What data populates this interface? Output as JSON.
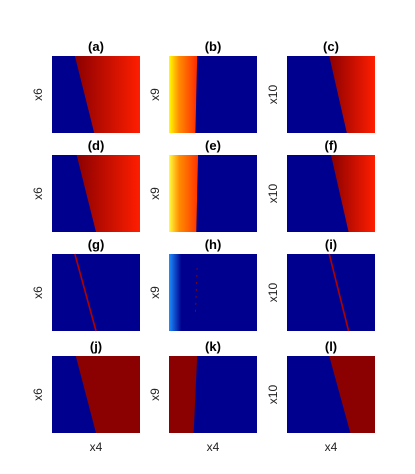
{
  "figure": {
    "colors": {
      "background": "#00008f",
      "red": "#ff1e00",
      "dark_red": "#8b0000",
      "yellow": "#ffff00",
      "light_blue": "#1e90ff"
    }
  },
  "chart_data": [
    {
      "type": "heatmap",
      "title": "(a)",
      "xlabel": "",
      "ylabel": "x6",
      "pattern": "boundary-gradient",
      "boundary_x": [
        0.26,
        0.48
      ],
      "colors": [
        "#ff1e00",
        "#8b0000"
      ]
    },
    {
      "type": "heatmap",
      "title": "(b)",
      "xlabel": "",
      "ylabel": "x9",
      "pattern": "left-strip",
      "boundary_x": [
        0.32,
        0.3
      ],
      "colors": [
        "#ff2a00",
        "#ffff00"
      ]
    },
    {
      "type": "heatmap",
      "title": "(c)",
      "xlabel": "",
      "ylabel": "x10",
      "pattern": "boundary-gradient",
      "boundary_x": [
        0.48,
        0.68
      ],
      "colors": [
        "#ff1e00",
        "#8b0000"
      ]
    },
    {
      "type": "heatmap",
      "title": "(d)",
      "xlabel": "",
      "ylabel": "x6",
      "pattern": "boundary-gradient",
      "boundary_x": [
        0.28,
        0.5
      ],
      "colors": [
        "#ff1e00",
        "#8b0000"
      ]
    },
    {
      "type": "heatmap",
      "title": "(e)",
      "xlabel": "",
      "ylabel": "x9",
      "pattern": "left-strip",
      "boundary_x": [
        0.33,
        0.31
      ],
      "colors": [
        "#ff3300",
        "#ffff40"
      ]
    },
    {
      "type": "heatmap",
      "title": "(f)",
      "xlabel": "",
      "ylabel": "x10",
      "pattern": "boundary-gradient",
      "boundary_x": [
        0.5,
        0.7
      ],
      "colors": [
        "#ff1e00",
        "#8b0000"
      ]
    },
    {
      "type": "heatmap",
      "title": "(g)",
      "xlabel": "",
      "ylabel": "x6",
      "pattern": "thin-line",
      "boundary_x": [
        0.26,
        0.5
      ],
      "colors": [
        "#b00000"
      ]
    },
    {
      "type": "heatmap",
      "title": "(h)",
      "xlabel": "",
      "ylabel": "x9",
      "pattern": "left-glow",
      "boundary_x": [
        0.32,
        0.3
      ],
      "colors": [
        "#1e90ff",
        "#8b0000"
      ]
    },
    {
      "type": "heatmap",
      "title": "(i)",
      "xlabel": "",
      "ylabel": "x10",
      "pattern": "thin-line",
      "boundary_x": [
        0.48,
        0.7
      ],
      "colors": [
        "#b00000"
      ]
    },
    {
      "type": "heatmap",
      "title": "(j)",
      "xlabel": "x4",
      "ylabel": "x6",
      "pattern": "solid-region",
      "boundary_x": [
        0.27,
        0.5
      ],
      "colors": [
        "#8b0000"
      ]
    },
    {
      "type": "heatmap",
      "title": "(k)",
      "xlabel": "x4",
      "ylabel": "x9",
      "pattern": "left-solid",
      "boundary_x": [
        0.32,
        0.28
      ],
      "colors": [
        "#8b0000"
      ]
    },
    {
      "type": "heatmap",
      "title": "(l)",
      "xlabel": "x4",
      "ylabel": "x10",
      "pattern": "solid-region",
      "boundary_x": [
        0.48,
        0.72
      ],
      "colors": [
        "#8b0000"
      ]
    }
  ]
}
